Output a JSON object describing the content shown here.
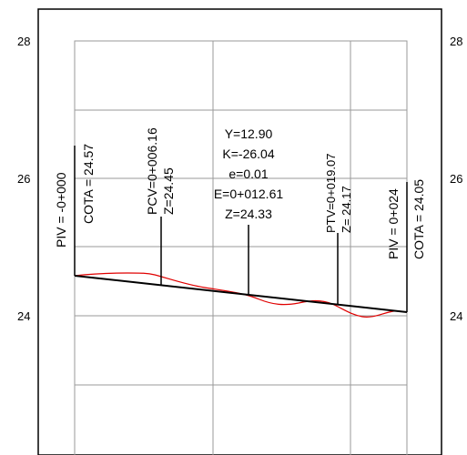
{
  "y_axis": {
    "left_ticks": [
      "28",
      "26",
      "24"
    ],
    "right_ticks": [
      "28",
      "26",
      "24"
    ]
  },
  "labels": {
    "piv_start": "PIV = -0+000",
    "cota_start": "COTA = 24.57",
    "pcv_station": "PCV=0+006.16",
    "pcv_z": "Z=24.45",
    "curve_y": "Y=12.90",
    "curve_k": "K=-26.04",
    "curve_e": "e=0.01",
    "curve_station": "E=0+012.61",
    "curve_z": "Z=24.33",
    "ptv_station": "PTV=0+019.07",
    "ptv_z": "Z= 24.17",
    "piv_end": "PIV = 0+024",
    "cota_end": "COTA = 24.05"
  },
  "colors": {
    "grade_line": "#000000",
    "terrain_line": "#e00000",
    "grid": "#9a9a9a",
    "frame": "#000000"
  }
}
